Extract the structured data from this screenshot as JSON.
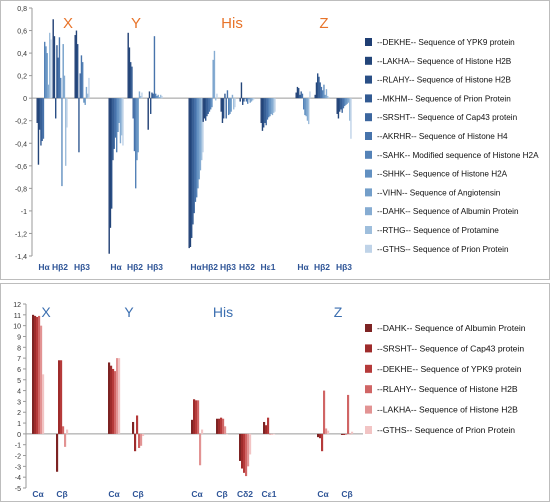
{
  "chart_data": [
    {
      "type": "bar",
      "title": "",
      "xlabel": "",
      "ylabel": "",
      "ylim": [
        -1.4,
        0.8
      ],
      "yticks": [
        "0,8",
        "0,6",
        "0,4",
        "0,2",
        "0",
        "-0,2",
        "-0,4",
        "-0,6",
        "-0,8",
        "-1",
        "-1,2",
        "-1,4"
      ],
      "grid": false,
      "legend_position": "right",
      "group_labels": [
        "X",
        "Y",
        "His",
        "Z"
      ],
      "group_label_color": "#e8742a",
      "categories": [
        "Hα",
        "Hβ2",
        "Hβ3",
        "Hα",
        "Hβ2",
        "Hβ3",
        "Hα",
        "Hβ2",
        "Hβ3",
        "Hδ2",
        "Hε1",
        "Hα",
        "Hβ2",
        "Hβ3"
      ],
      "category_group": [
        0,
        0,
        0,
        1,
        1,
        1,
        2,
        2,
        2,
        2,
        2,
        3,
        3,
        3
      ],
      "series": [
        {
          "name": "--DEKHE-- Sequence of YPK9 protein",
          "color": "#1f3e73",
          "values": [
            -0.22,
            0.7,
            0.56,
            -1.38,
            0.58,
            -0.28,
            -1.33,
            -0.21,
            -0.12,
            -0.03,
            -0.22,
            0.05,
            0.03,
            -0.14
          ]
        },
        {
          "name": "--LAKHA-- Sequence of Histone H2B",
          "color": "#234579",
          "values": [
            -0.59,
            0.55,
            0.6,
            -1.15,
            0.45,
            0.06,
            -1.32,
            -0.18,
            -0.22,
            0.14,
            -0.29,
            0.1,
            0.14,
            -0.18
          ]
        },
        {
          "name": "--RLAHY-- Sequence of Histone H2B",
          "color": "#2a4f86",
          "values": [
            -0.28,
            -0.18,
            0.48,
            -0.98,
            0.32,
            -0.14,
            -1.24,
            -0.2,
            -0.18,
            -0.06,
            -0.26,
            0.09,
            0.22,
            -0.12
          ]
        },
        {
          "name": "--MKHM-- Sequence of Prion Protein",
          "color": "#325a92",
          "values": [
            -0.42,
            0.47,
            -0.48,
            -0.55,
            0.28,
            0.05,
            -1.12,
            -0.16,
            0.04,
            -0.03,
            -0.22,
            0.03,
            0.19,
            -0.1
          ]
        },
        {
          "name": "--SRSHT-- Sequence of Cap43 protein",
          "color": "#3c669e",
          "values": [
            -0.38,
            0.36,
            0.22,
            -0.45,
            -0.18,
            0.04,
            -1.02,
            -0.14,
            -0.18,
            0.0,
            -0.24,
            0.06,
            0.14,
            -0.13
          ]
        },
        {
          "name": "--AKRHR-- Sequence of Histone H4",
          "color": "#4773ab",
          "values": [
            -0.36,
            0.54,
            0.38,
            -0.35,
            -0.47,
            0.55,
            -0.92,
            -0.12,
            0.07,
            -0.03,
            -0.19,
            0.04,
            0.1,
            -0.09
          ]
        },
        {
          "name": "--SAHK-- Modified sequence of Histone H2A",
          "color": "#5482b7",
          "values": [
            0.5,
            0.18,
            0.32,
            -0.48,
            -0.8,
            0.04,
            -0.88,
            -0.1,
            -0.15,
            -0.05,
            -0.17,
            -0.1,
            0.07,
            -0.07
          ]
        },
        {
          "name": "--SHHK-- Sequence of Histone H2A",
          "color": "#6290c1",
          "values": [
            0.46,
            -0.78,
            -0.04,
            -0.3,
            -0.55,
            0.02,
            -0.8,
            -0.08,
            -0.14,
            -0.01,
            -0.16,
            -0.15,
            0.12,
            -0.06
          ]
        },
        {
          "name": "--VIHN-- Sequence of Angiotensin",
          "color": "#739ec9",
          "values": [
            0.4,
            0.48,
            -0.06,
            -0.22,
            -0.48,
            0.03,
            -0.72,
            0.34,
            -0.12,
            -0.04,
            -0.14,
            -0.16,
            0.03,
            -0.05
          ]
        },
        {
          "name": "--DAHK-- Sequence of Albumin Protein",
          "color": "#86acd2",
          "values": [
            0.12,
            0.2,
            0.1,
            -0.4,
            0.06,
            0.01,
            -0.64,
            0.42,
            0.03,
            -0.03,
            -0.15,
            -0.2,
            0.08,
            -0.04
          ]
        },
        {
          "name": "--RTHG-- Sequence of Protamine",
          "color": "#9ebedc",
          "values": [
            0.58,
            -0.6,
            0.04,
            -0.33,
            0.02,
            0.03,
            -0.55,
            -0.02,
            -0.1,
            -0.02,
            -0.13,
            -0.23,
            0.02,
            -0.2
          ]
        },
        {
          "name": "--GTHS-- Sequence of Prion Protein",
          "color": "#bfd3e8",
          "values": [
            0.52,
            -0.26,
            0.18,
            -0.42,
            0.05,
            0.02,
            -0.48,
            0.04,
            -0.08,
            -0.01,
            -0.12,
            0.06,
            0.01,
            -0.36
          ]
        }
      ]
    },
    {
      "type": "bar",
      "title": "",
      "xlabel": "",
      "ylabel": "",
      "ylim": [
        -5,
        12
      ],
      "yticks": [
        "12",
        "11",
        "10",
        "9",
        "8",
        "7",
        "6",
        "5",
        "4",
        "3",
        "2",
        "1",
        "0",
        "-1",
        "-2",
        "-3",
        "-4",
        "-5"
      ],
      "grid": false,
      "legend_position": "right",
      "group_labels": [
        "X",
        "Y",
        "His",
        "Z"
      ],
      "group_label_color": "#3c6fb0",
      "categories": [
        "Cα",
        "Cβ",
        "Cα",
        "Cβ",
        "Cα",
        "Cβ",
        "Cδ2",
        "Cε1",
        "Cα",
        "Cβ"
      ],
      "category_group": [
        0,
        0,
        1,
        1,
        2,
        2,
        2,
        2,
        3,
        3
      ],
      "series": [
        {
          "name": "--DAHK-- Sequence of Albumin Protein",
          "color": "#7d2323",
          "values": [
            11.0,
            -3.5,
            6.6,
            1.1,
            1.3,
            1.4,
            -2.5,
            1.1,
            -0.3,
            -0.1
          ]
        },
        {
          "name": "--SRSHT-- Sequence of Cap43 protein",
          "color": "#9e2b2b",
          "values": [
            10.9,
            6.8,
            6.3,
            -1.6,
            3.2,
            1.4,
            -3.2,
            0.8,
            -0.4,
            -0.1
          ]
        },
        {
          "name": "--DEKHE-- Sequence of YPK9 protein",
          "color": "#b53a3a",
          "values": [
            10.8,
            6.8,
            6.0,
            1.7,
            3.1,
            1.5,
            -3.6,
            1.5,
            -1.6,
            0.0
          ]
        },
        {
          "name": "--RLAHY-- Sequence of Histone H2B",
          "color": "#d06565",
          "values": [
            10.9,
            0.7,
            5.8,
            -1.3,
            3.1,
            1.4,
            -3.9,
            0.0,
            4.0,
            3.6
          ]
        },
        {
          "name": "--LAKHA-- Sequence of Histone H2B",
          "color": "#e29393",
          "values": [
            10.0,
            -1.2,
            7.0,
            -1.1,
            -2.9,
            0.7,
            -3.0,
            0.0,
            0.5,
            0.0
          ]
        },
        {
          "name": "--GTHS-- Sequence of Prion Protein",
          "color": "#f2c4c4",
          "values": [
            5.5,
            0.4,
            7.0,
            -0.2,
            0.4,
            0.0,
            -1.9,
            0.0,
            0.3,
            0.2
          ]
        }
      ]
    }
  ]
}
